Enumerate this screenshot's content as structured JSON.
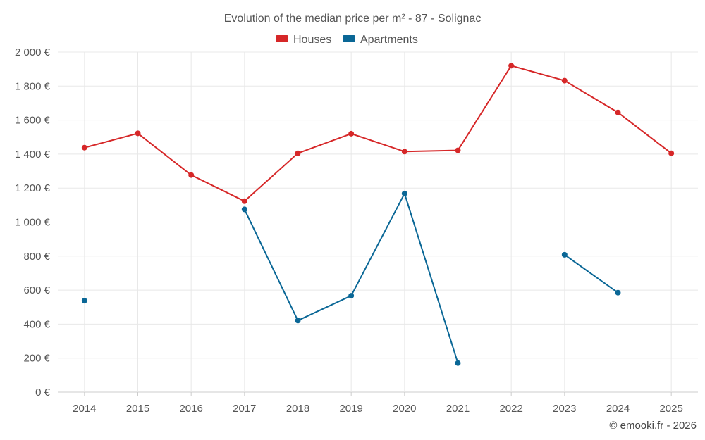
{
  "chart_data": {
    "type": "line",
    "title": "Evolution of the median price per m² - 87 - Solignac",
    "categories": [
      "2014",
      "2015",
      "2016",
      "2017",
      "2018",
      "2019",
      "2020",
      "2021",
      "2022",
      "2023",
      "2024",
      "2025"
    ],
    "series": [
      {
        "name": "Houses",
        "color": "#d62728",
        "values": [
          1438,
          1522,
          1277,
          1123,
          1405,
          1520,
          1415,
          1422,
          1920,
          1832,
          1645,
          1405
        ]
      },
      {
        "name": "Apartments",
        "color": "#0a6796",
        "values": [
          538,
          null,
          null,
          1075,
          421,
          567,
          1168,
          171,
          null,
          808,
          585,
          null
        ]
      }
    ],
    "y_ticks": [
      0,
      200,
      400,
      600,
      800,
      1000,
      1200,
      1400,
      1600,
      1800,
      2000
    ],
    "y_tick_labels": [
      "0 €",
      "200 €",
      "400 €",
      "600 €",
      "800 €",
      "1 000 €",
      "1 200 €",
      "1 400 €",
      "1 600 €",
      "1 800 €",
      "2 000 €"
    ],
    "ylim": [
      0,
      2000
    ],
    "grid": true,
    "legend_position": "top-center",
    "xlabel": "",
    "ylabel": ""
  },
  "credit": "© emooki.fr - 2026"
}
